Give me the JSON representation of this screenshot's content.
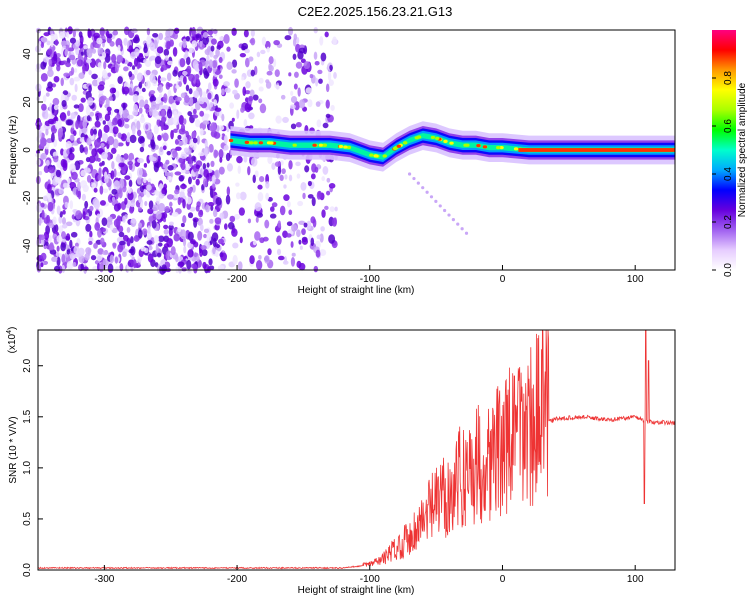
{
  "title": "C2E2.2025.156.23.21.G13",
  "chart_data": [
    {
      "type": "heatmap",
      "xlabel": "Height of straight line (km)",
      "ylabel": "Frequency (Hz)",
      "xlim": [
        -350,
        130
      ],
      "ylim": [
        -50,
        50
      ],
      "xticks": [
        -300,
        -200,
        -100,
        0,
        100
      ],
      "yticks": [
        -40,
        -20,
        0,
        20,
        40
      ],
      "colorbar": {
        "label": "Normalized spectral amplitude",
        "range": [
          0,
          1
        ],
        "ticks": [
          "0.0",
          "0.2",
          "0.4",
          "0.6",
          "0.8"
        ],
        "colormap": [
          "#ffffff",
          "#e6ccff",
          "#a060f0",
          "#6600dd",
          "#0000ff",
          "#00aaff",
          "#00ffcc",
          "#00ff00",
          "#aaff00",
          "#ffff00",
          "#ff9900",
          "#ff0000",
          "#ff0080"
        ]
      },
      "ridge": [
        {
          "x": -205,
          "y": 4
        },
        {
          "x": -190,
          "y": 3
        },
        {
          "x": -175,
          "y": 3
        },
        {
          "x": -160,
          "y": 2
        },
        {
          "x": -145,
          "y": 2
        },
        {
          "x": -130,
          "y": 2
        },
        {
          "x": -115,
          "y": 1
        },
        {
          "x": -100,
          "y": -2
        },
        {
          "x": -90,
          "y": -3
        },
        {
          "x": -80,
          "y": 1
        },
        {
          "x": -70,
          "y": 4
        },
        {
          "x": -60,
          "y": 6
        },
        {
          "x": -50,
          "y": 5
        },
        {
          "x": -40,
          "y": 3
        },
        {
          "x": -30,
          "y": 2
        },
        {
          "x": -20,
          "y": 2
        },
        {
          "x": -10,
          "y": 1
        },
        {
          "x": 0,
          "y": 1
        },
        {
          "x": 20,
          "y": 0
        },
        {
          "x": 60,
          "y": 0
        },
        {
          "x": 100,
          "y": 0
        },
        {
          "x": 130,
          "y": 0
        }
      ],
      "noise_region": {
        "x_from": -350,
        "x_to": -125
      }
    },
    {
      "type": "line",
      "xlabel": "Height of straight line (km)",
      "ylabel": "SNR (10 * V/V)",
      "scale_note": "(x10",
      "scale_exp": "4",
      "xlim": [
        -350,
        130
      ],
      "ylim": [
        0,
        2.35
      ],
      "xticks": [
        -300,
        -200,
        -100,
        0,
        100
      ],
      "yticks": [
        "0.0",
        "0.5",
        "1.0",
        "1.5",
        "2.0"
      ],
      "line_color": "#ee3333",
      "envelope": [
        {
          "x": -350,
          "y": 0.02
        },
        {
          "x": -200,
          "y": 0.02
        },
        {
          "x": -120,
          "y": 0.02
        },
        {
          "x": -100,
          "y": 0.05
        },
        {
          "x": -90,
          "y": 0.1
        },
        {
          "x": -80,
          "y": 0.2
        },
        {
          "x": -70,
          "y": 0.3
        },
        {
          "x": -60,
          "y": 0.45
        },
        {
          "x": -50,
          "y": 0.6
        },
        {
          "x": -40,
          "y": 0.7
        },
        {
          "x": -30,
          "y": 0.85
        },
        {
          "x": -20,
          "y": 0.95
        },
        {
          "x": -10,
          "y": 1.0
        },
        {
          "x": 0,
          "y": 1.1
        },
        {
          "x": 10,
          "y": 1.2
        },
        {
          "x": 20,
          "y": 1.3
        },
        {
          "x": 30,
          "y": 1.42
        },
        {
          "x": 40,
          "y": 1.48
        },
        {
          "x": 60,
          "y": 1.5
        },
        {
          "x": 80,
          "y": 1.47
        },
        {
          "x": 100,
          "y": 1.5
        },
        {
          "x": 110,
          "y": 1.45
        },
        {
          "x": 130,
          "y": 1.44
        }
      ],
      "spikes": [
        {
          "x": 9,
          "y": 1.9
        },
        {
          "x": 108,
          "y": 2.35
        },
        {
          "x": 110,
          "y": 2.05
        },
        {
          "x": 107,
          "y": 0.65
        }
      ]
    }
  ]
}
